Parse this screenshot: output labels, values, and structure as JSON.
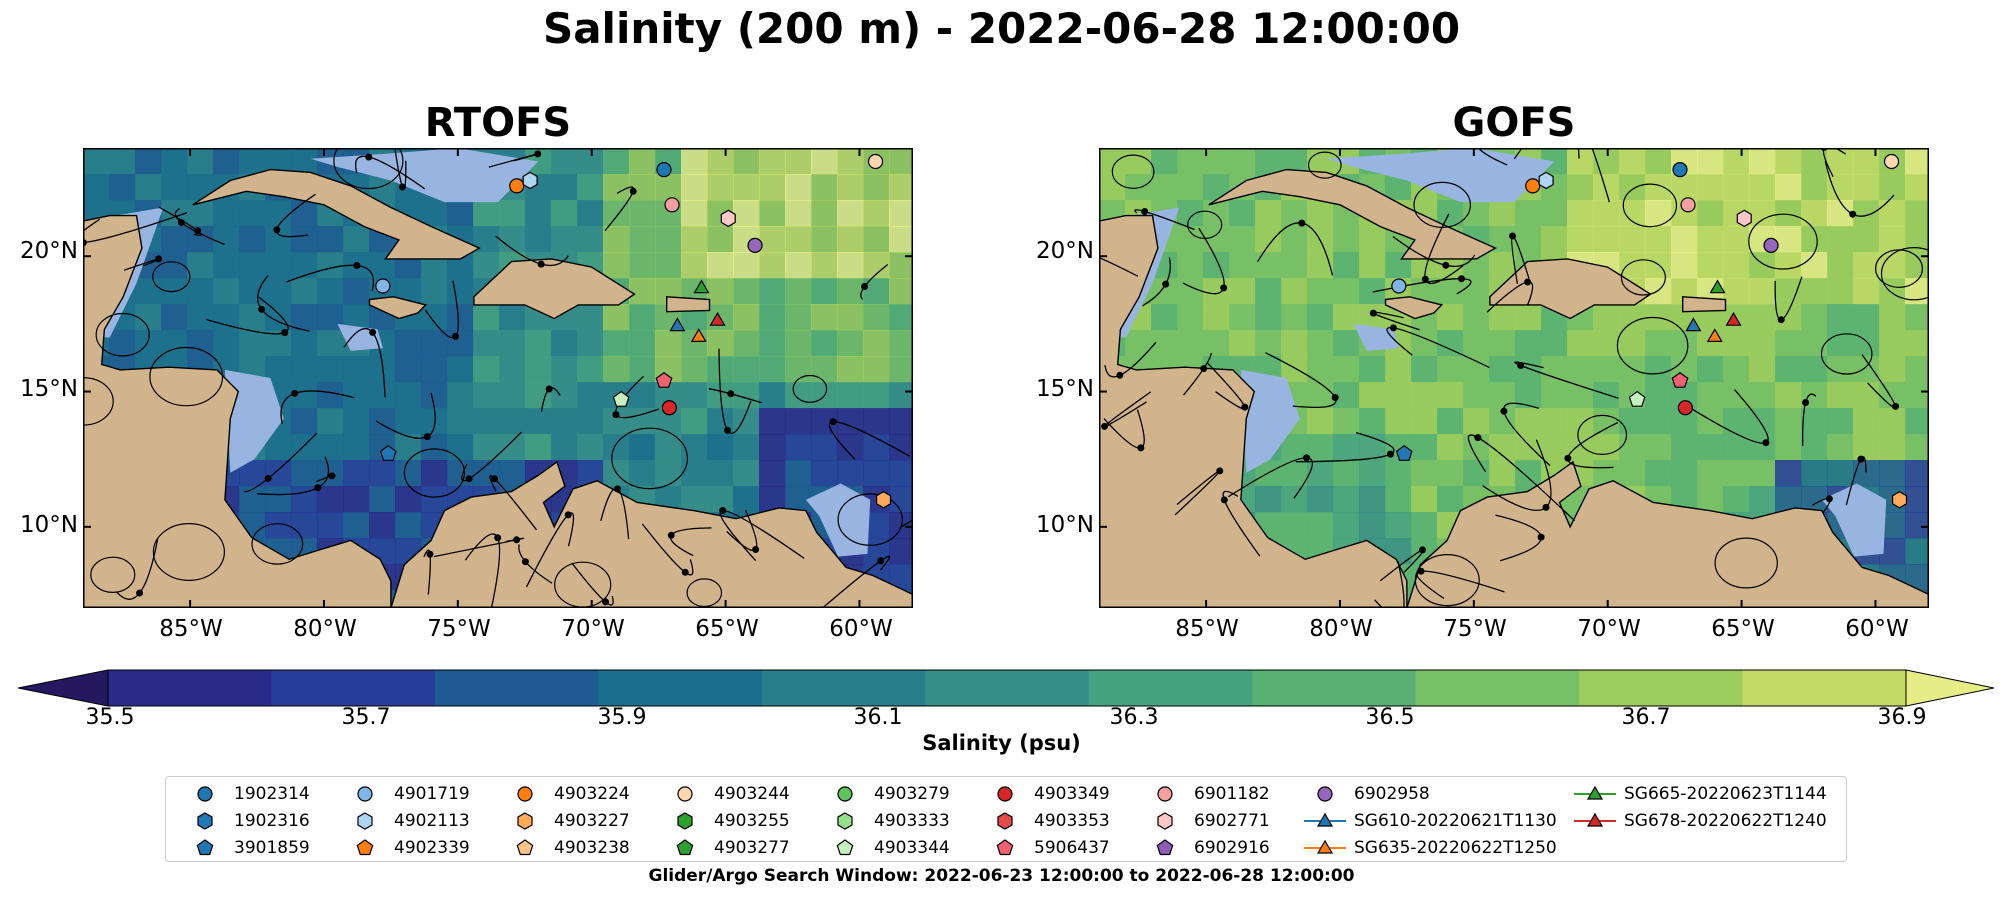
{
  "figure": {
    "suptitle": "Salinity (200 m) - 2022-06-28 12:00:00",
    "search_window": "Glider/Argo Search Window: 2022-06-23 12:00:00 to 2022-06-28 12:00:00"
  },
  "panels": [
    {
      "title": "RTOFS"
    },
    {
      "title": "GOFS"
    }
  ],
  "map_extent": {
    "lon": [
      -89,
      -58
    ],
    "lat": [
      7,
      24
    ]
  },
  "ticks": {
    "x": [
      "85°W",
      "80°W",
      "75°W",
      "70°W",
      "65°W",
      "60°W"
    ],
    "y": [
      "20°N",
      "15°N",
      "10°N"
    ]
  },
  "colors": {
    "land": "#d2b48c",
    "shallow_water": "#98b4e0",
    "stream": "#000000"
  },
  "colorbar": {
    "label": "Salinity (psu)",
    "ticks": [
      "35.5",
      "35.7",
      "35.9",
      "36.1",
      "36.3",
      "36.5",
      "36.7",
      "36.9"
    ],
    "min": 35.5,
    "max": 36.9,
    "extend": "both",
    "colors": [
      "#26185f",
      "#2b2a8a",
      "#273d9a",
      "#1f5a92",
      "#1b6e8c",
      "#287e8a",
      "#378e88",
      "#45a180",
      "#58b172",
      "#78c065",
      "#9dcd5c",
      "#c4da64",
      "#e8ec86"
    ]
  },
  "legend": {
    "items": [
      {
        "label": "1902314",
        "marker": "circle",
        "color": "#1f77b4"
      },
      {
        "label": "1902316",
        "marker": "hexagon",
        "color": "#1f77b4"
      },
      {
        "label": "3901859",
        "marker": "pentagon",
        "color": "#1f77b4"
      },
      {
        "label": "4901719",
        "marker": "circle",
        "color": "#7fb6e6"
      },
      {
        "label": "4902113",
        "marker": "hexagon",
        "color": "#aed5f2"
      },
      {
        "label": "4902339",
        "marker": "pentagon",
        "color": "#ff7f0e"
      },
      {
        "label": "4903224",
        "marker": "circle",
        "color": "#ff7f0e"
      },
      {
        "label": "4903227",
        "marker": "hexagon",
        "color": "#ffaa5a"
      },
      {
        "label": "4903238",
        "marker": "pentagon",
        "color": "#ffc48a"
      },
      {
        "label": "4903244",
        "marker": "circle",
        "color": "#ffd8b0"
      },
      {
        "label": "4903255",
        "marker": "hexagon",
        "color": "#2ca02c"
      },
      {
        "label": "4903277",
        "marker": "pentagon",
        "color": "#2ca02c"
      },
      {
        "label": "4903279",
        "marker": "circle",
        "color": "#5fc25a"
      },
      {
        "label": "4903333",
        "marker": "hexagon",
        "color": "#98df8a"
      },
      {
        "label": "4903344",
        "marker": "pentagon",
        "color": "#c7f0c0"
      },
      {
        "label": "4903349",
        "marker": "circle",
        "color": "#d62728"
      },
      {
        "label": "4903353",
        "marker": "hexagon",
        "color": "#e34a4a"
      },
      {
        "label": "5906437",
        "marker": "pentagon",
        "color": "#f06272"
      },
      {
        "label": "6901182",
        "marker": "circle",
        "color": "#f4a0a0"
      },
      {
        "label": "6902771",
        "marker": "hexagon",
        "color": "#ffc8c8"
      },
      {
        "label": "6902916",
        "marker": "pentagon",
        "color": "#8e5bb5"
      },
      {
        "label": "6902958",
        "marker": "circle",
        "color": "#9467bd"
      },
      {
        "label": "SG610-20220621T1130",
        "marker": "triangle-line",
        "color": "#1f77b4"
      },
      {
        "label": "SG635-20220622T1250",
        "marker": "triangle-line",
        "color": "#ff7f0e"
      },
      {
        "label": "SG665-20220623T1144",
        "marker": "triangle-line",
        "color": "#2ca02c"
      },
      {
        "label": "SG678-20220622T1240",
        "marker": "triangle-line",
        "color": "#d62728"
      }
    ]
  },
  "platforms": [
    {
      "id": "1902314",
      "lon": -67.3,
      "lat": 23.2
    },
    {
      "id": "4901719",
      "lon": -77.8,
      "lat": 18.9
    },
    {
      "id": "4903224",
      "lon": -72.8,
      "lat": 22.6
    },
    {
      "id": "4902113",
      "lon": -72.3,
      "lat": 22.8
    },
    {
      "id": "4903244",
      "lon": -59.4,
      "lat": 23.5
    },
    {
      "id": "6901182",
      "lon": -67.0,
      "lat": 21.9
    },
    {
      "id": "6902771",
      "lon": -64.9,
      "lat": 21.4
    },
    {
      "id": "6902958",
      "lon": -63.9,
      "lat": 20.4
    },
    {
      "id": "4903349",
      "lon": -67.1,
      "lat": 14.4
    },
    {
      "id": "5906437",
      "lon": -67.3,
      "lat": 15.4
    },
    {
      "id": "4903344",
      "lon": -68.9,
      "lat": 14.7
    },
    {
      "id": "3901859",
      "lon": -77.6,
      "lat": 12.7
    },
    {
      "id": "4903227",
      "lon": -59.1,
      "lat": 11.0
    },
    {
      "id": "SG610-20220621T1130",
      "lon": -66.8,
      "lat": 17.4
    },
    {
      "id": "SG635-20220622T1250",
      "lon": -66.0,
      "lat": 17.0
    },
    {
      "id": "SG665-20220623T1144",
      "lon": -65.9,
      "lat": 18.8
    },
    {
      "id": "SG678-20220622T1240",
      "lon": -65.3,
      "lat": 17.6
    }
  ]
}
